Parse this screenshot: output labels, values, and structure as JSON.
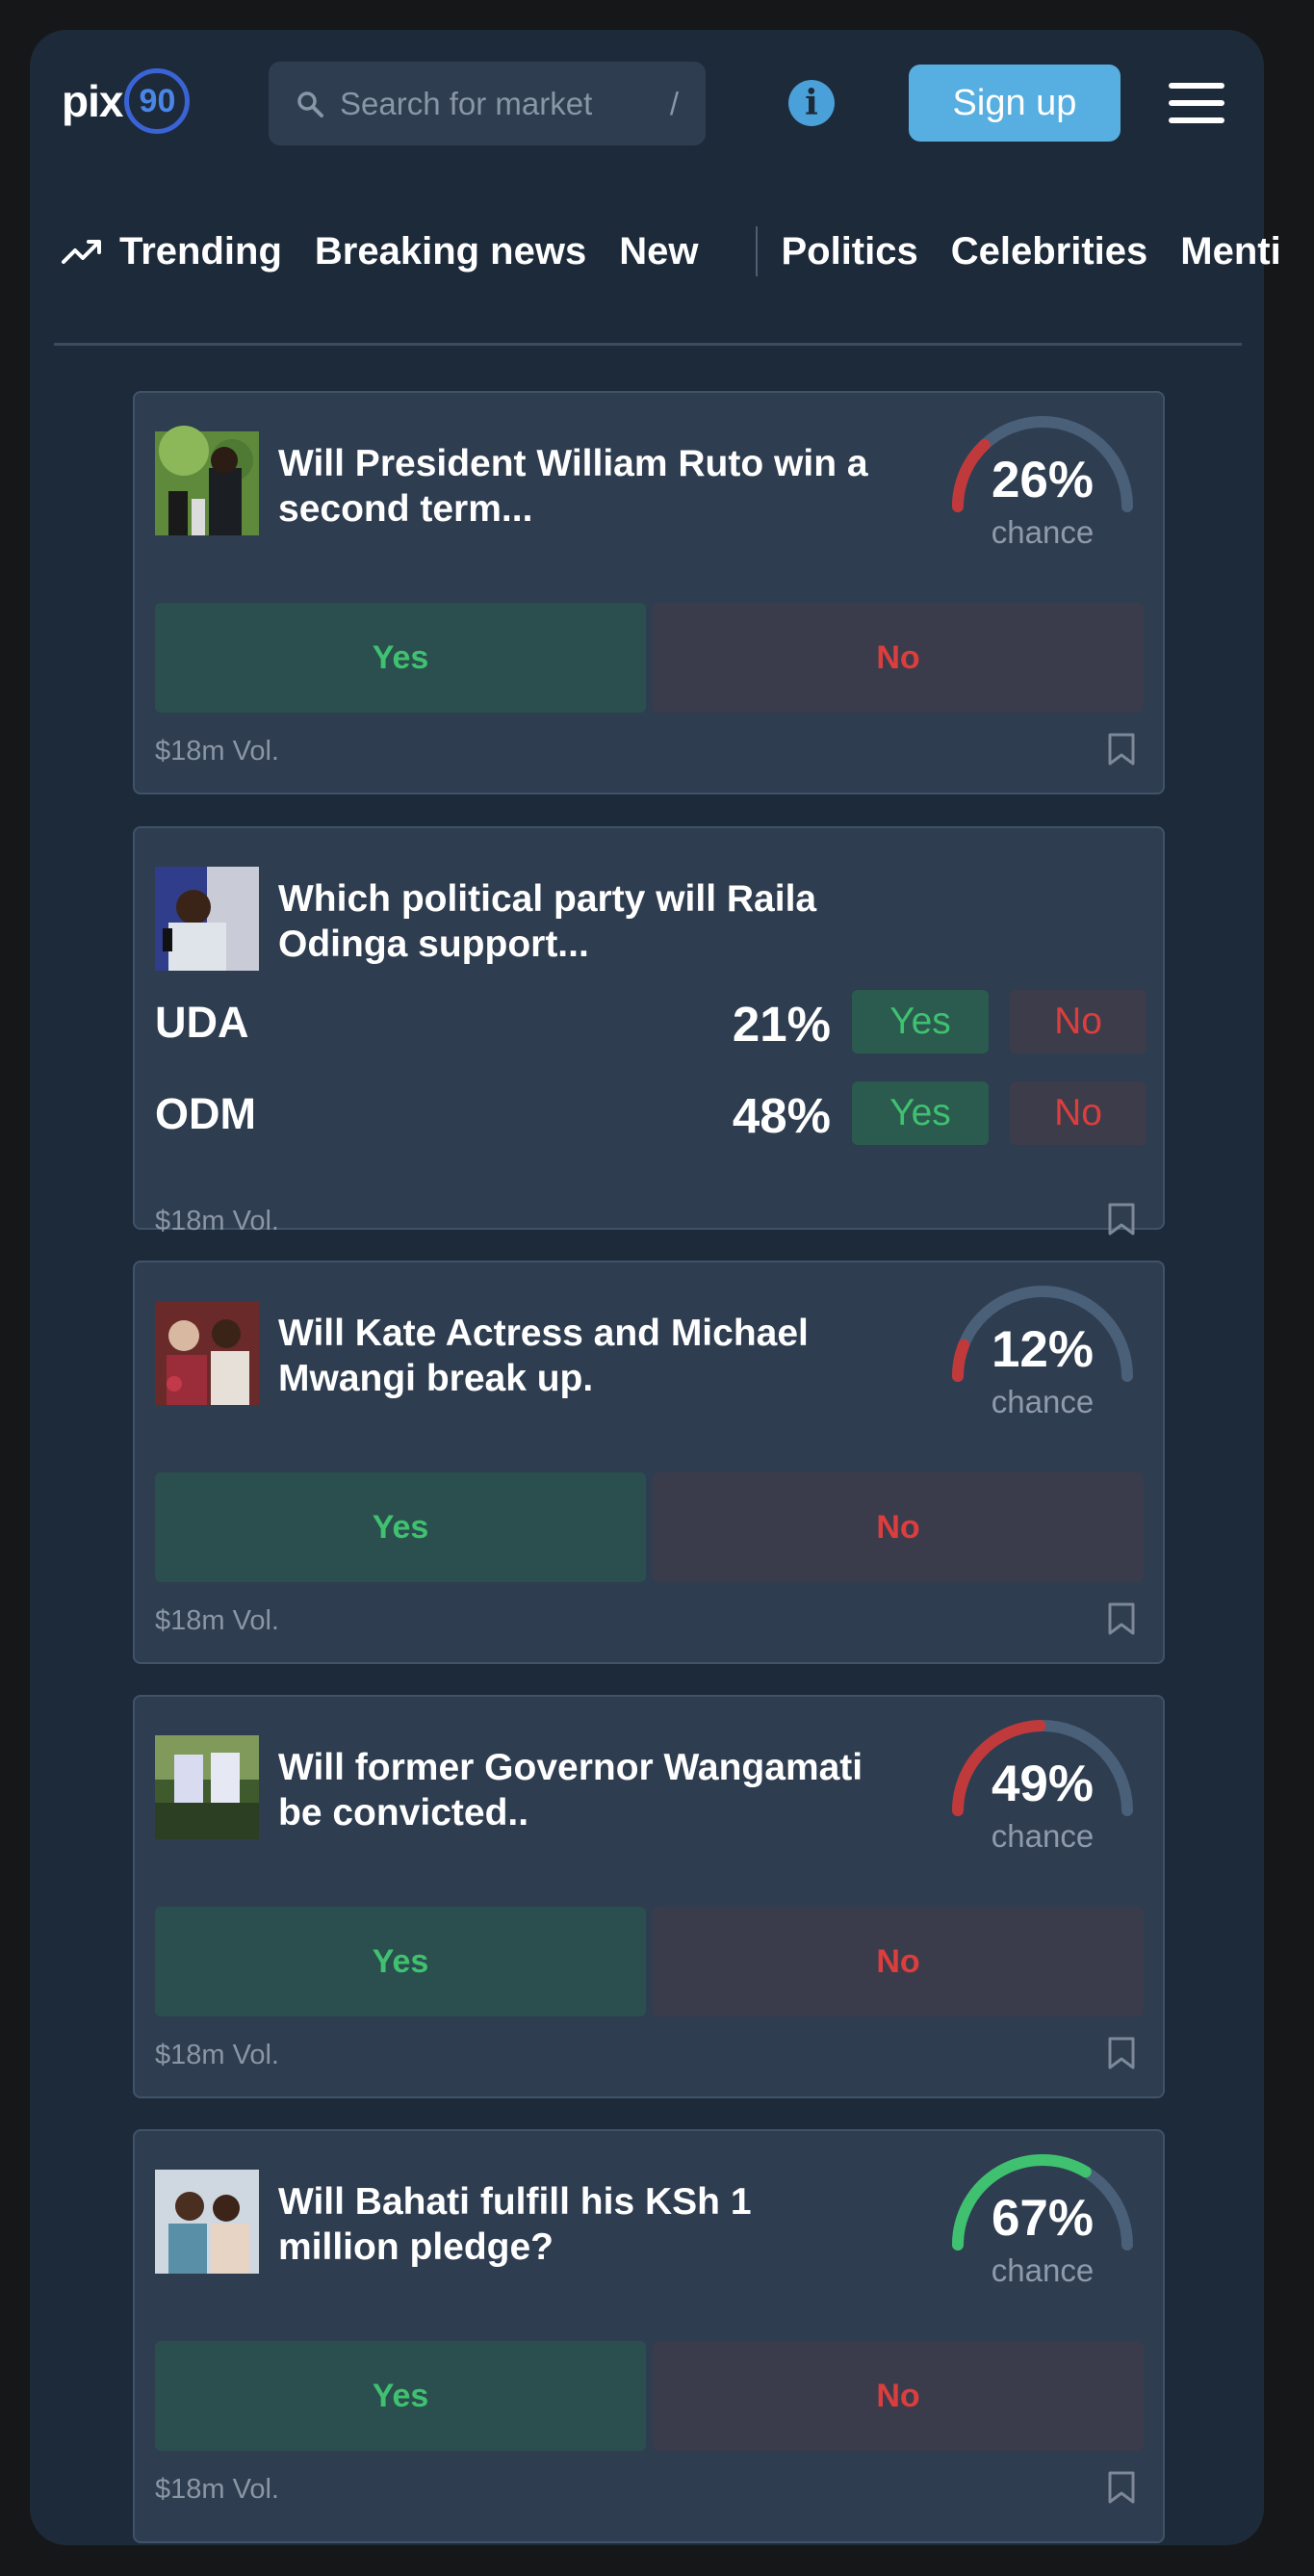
{
  "header": {
    "logo_text": "pix",
    "logo_number": "90",
    "search_placeholder": "Search for market",
    "search_shortcut": "/",
    "info_label": "i",
    "signup_label": "Sign up"
  },
  "nav": {
    "items": [
      "Trending",
      "Breaking news",
      "New",
      "Politics",
      "Celebrities",
      "Menti"
    ]
  },
  "markets": [
    {
      "title": "Will President William Ruto win a second term...",
      "chance": 26,
      "chance_text": "26%",
      "chance_label": "chance",
      "yes_label": "Yes",
      "no_label": "No",
      "volume": "$18m Vol."
    },
    {
      "title": "Which political party will Raila Odinga support...",
      "volume": "$18m Vol.",
      "options": [
        {
          "name": "UDA",
          "pct": "21%",
          "yes_label": "Yes",
          "no_label": "No"
        },
        {
          "name": "ODM",
          "pct": "48%",
          "yes_label": "Yes",
          "no_label": "No"
        }
      ]
    },
    {
      "title": "Will Kate Actress and Michael Mwangi break up.",
      "chance": 12,
      "chance_text": "12%",
      "chance_label": "chance",
      "yes_label": "Yes",
      "no_label": "No",
      "volume": "$18m Vol."
    },
    {
      "title": "Will former  Governor  Wangamati be convicted..",
      "chance": 49,
      "chance_text": "49%",
      "chance_label": "chance",
      "yes_label": "Yes",
      "no_label": "No",
      "volume": "$18m Vol."
    },
    {
      "title": "Will Bahati fulfill his KSh 1 million pledge?",
      "chance": 67,
      "chance_text": "67%",
      "chance_label": "chance",
      "yes_label": "Yes",
      "no_label": "No",
      "volume": "$18m Vol."
    }
  ],
  "colors": {
    "gauge_track": "#4a5f78",
    "gauge_low": "#c0393b",
    "gauge_high": "#3fc170",
    "yes_text": "#3fc170",
    "no_text": "#dc3e3e",
    "accent": "#57aee0"
  }
}
